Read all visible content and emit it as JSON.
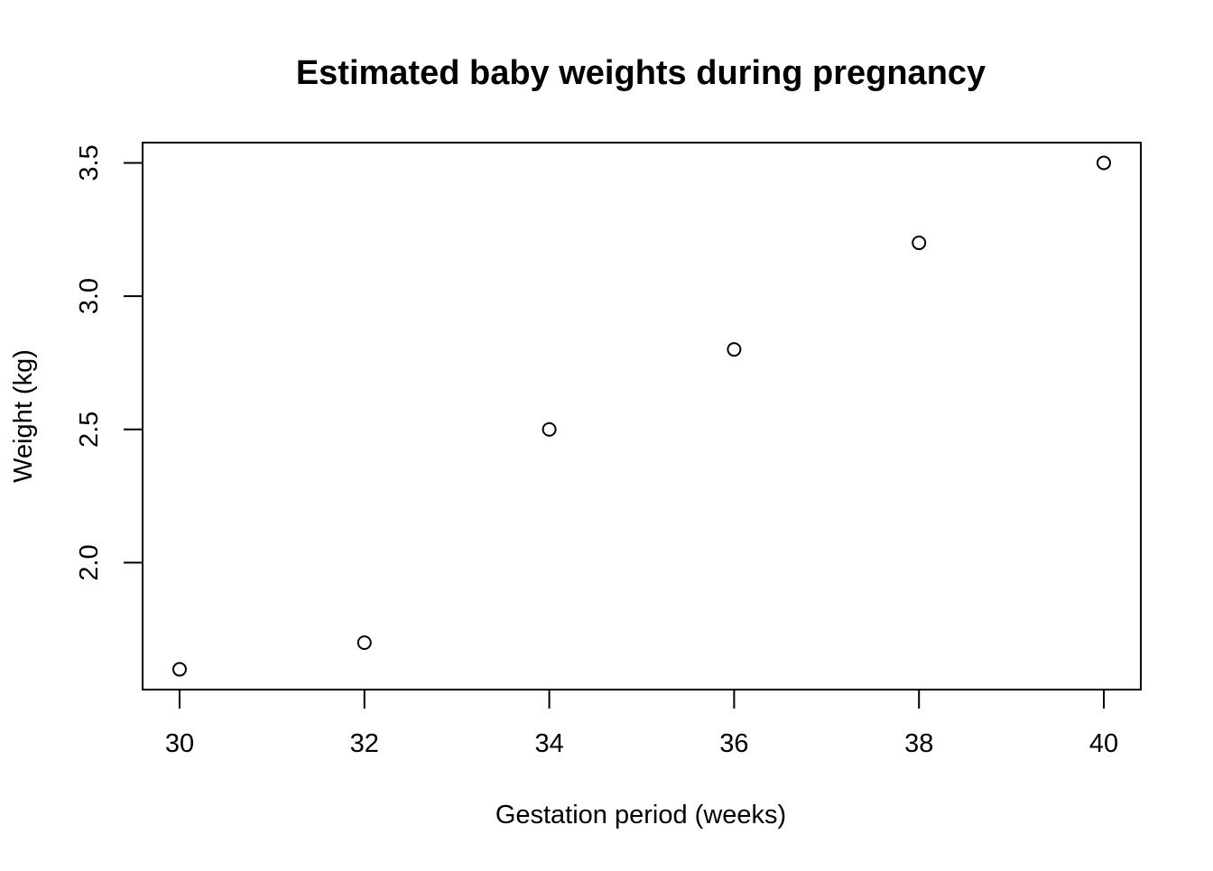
{
  "chart_data": {
    "type": "scatter",
    "title": "Estimated baby weights during pregnancy",
    "xlabel": "Gestation period (weeks)",
    "ylabel": "Weight (kg)",
    "x": [
      30,
      32,
      34,
      36,
      38,
      40
    ],
    "y": [
      1.6,
      1.7,
      2.5,
      2.8,
      3.2,
      3.5
    ],
    "xlim": [
      29.6,
      40.4
    ],
    "ylim": [
      1.524,
      3.576
    ],
    "x_ticks": [
      30,
      32,
      34,
      36,
      38,
      40
    ],
    "x_tick_labels": [
      "30",
      "32",
      "34",
      "36",
      "38",
      "40"
    ],
    "y_ticks": [
      2.0,
      2.5,
      3.0,
      3.5
    ],
    "y_tick_labels": [
      "2.0",
      "2.5",
      "3.0",
      "3.5"
    ],
    "marker": "open-circle",
    "grid": false,
    "legend": "none",
    "colors": {
      "marker": "#000000",
      "axis": "#000000",
      "background": "#ffffff"
    }
  }
}
